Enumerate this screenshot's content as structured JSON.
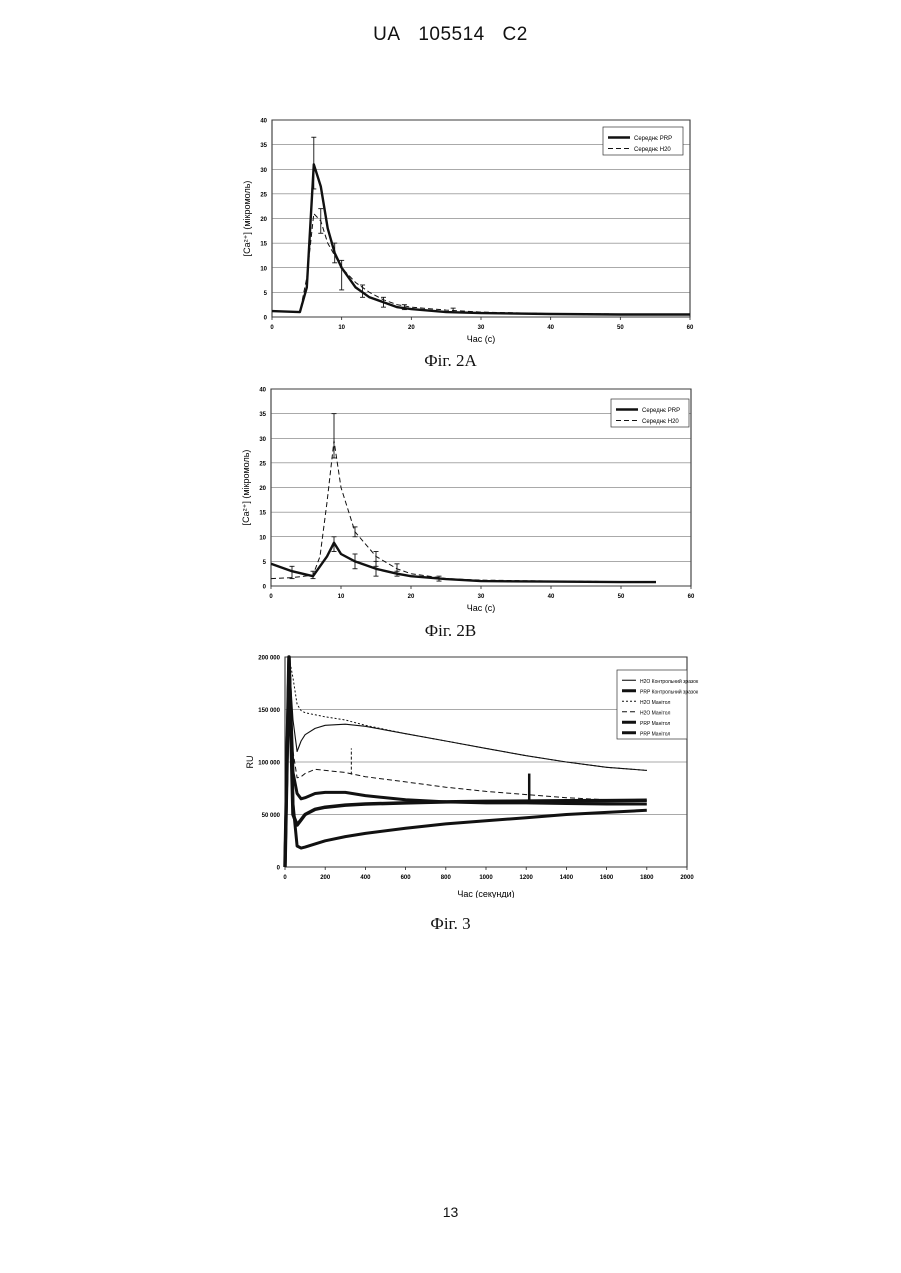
{
  "header": {
    "country": "UA",
    "number": "105514",
    "kind": "C2"
  },
  "page_number": "13",
  "captions": [
    "Фіг. 2А",
    "Фіг. 2В",
    "Фіг. 3"
  ],
  "chart_data": [
    {
      "type": "line",
      "id": "fig2a",
      "caption": "Фіг. 2А",
      "xlabel": "Час (с)",
      "ylabel": "[Ca²⁺] (мікромоль)",
      "xlim": [
        0,
        60
      ],
      "ylim": [
        0,
        40
      ],
      "x_ticks": [
        0,
        10,
        20,
        30,
        40,
        50,
        60
      ],
      "y_ticks": [
        0,
        5,
        10,
        15,
        20,
        25,
        30,
        35,
        40
      ],
      "grid": true,
      "legend_position": "top-right",
      "series": [
        {
          "name": "Середнє PRP",
          "style": "solid-thick",
          "x": [
            0,
            4,
            5,
            6,
            7,
            8,
            9,
            10,
            12,
            14,
            16,
            18,
            20,
            25,
            30,
            40,
            50,
            60
          ],
          "y": [
            1.2,
            1.0,
            6.0,
            31.0,
            26.5,
            18.0,
            13.0,
            10.0,
            6.0,
            4.0,
            3.0,
            2.0,
            1.6,
            1.0,
            0.8,
            0.6,
            0.5,
            0.5
          ],
          "errors": [
            {
              "x": 6,
              "low": 26,
              "high": 36.5
            },
            {
              "x": 10,
              "low": 5.5,
              "high": 11.5
            },
            {
              "x": 13,
              "low": 4,
              "high": 6.5
            },
            {
              "x": 19,
              "low": 1.5,
              "high": 2.5
            }
          ]
        },
        {
          "name": "Середнє H20",
          "style": "dashed",
          "x": [
            0,
            4,
            5,
            6,
            7,
            8,
            10,
            12,
            14,
            16,
            18,
            20,
            25,
            30,
            40,
            50,
            60
          ],
          "y": [
            1.2,
            1.0,
            8.0,
            21.0,
            19.5,
            15.0,
            10.0,
            7.0,
            5.0,
            3.5,
            2.5,
            2.0,
            1.4,
            1.0,
            0.7,
            0.6,
            0.5
          ],
          "errors": [
            {
              "x": 7,
              "low": 17,
              "high": 22
            },
            {
              "x": 9,
              "low": 11,
              "high": 15
            },
            {
              "x": 16,
              "low": 2,
              "high": 4
            },
            {
              "x": 26,
              "low": 1,
              "high": 1.8
            }
          ]
        }
      ]
    },
    {
      "type": "line",
      "id": "fig2b",
      "caption": "Фіг. 2В",
      "xlabel": "Час (с)",
      "ylabel": "[Ca²⁺] (мікромоль)",
      "xlim": [
        0,
        60
      ],
      "ylim": [
        0,
        40
      ],
      "x_ticks": [
        0,
        10,
        20,
        30,
        40,
        50,
        60
      ],
      "y_ticks": [
        0,
        5,
        10,
        15,
        20,
        25,
        30,
        35,
        40
      ],
      "grid": true,
      "legend_position": "top-right",
      "series": [
        {
          "name": "Середнє PRP",
          "style": "solid-thick",
          "x": [
            0,
            3,
            6,
            7,
            8,
            9,
            10,
            12,
            15,
            18,
            20,
            25,
            30,
            40,
            50,
            55
          ],
          "y": [
            4.5,
            3.0,
            2.0,
            4.0,
            6.0,
            8.8,
            6.5,
            5.0,
            3.5,
            2.5,
            2.0,
            1.4,
            1.0,
            0.9,
            0.8,
            0.8
          ],
          "errors": [
            {
              "x": 3,
              "low": 1.5,
              "high": 4
            },
            {
              "x": 6,
              "low": 1.5,
              "high": 3
            },
            {
              "x": 9,
              "low": 7,
              "high": 10
            },
            {
              "x": 12,
              "low": 3.5,
              "high": 6.5
            },
            {
              "x": 15,
              "low": 2,
              "high": 5
            },
            {
              "x": 18,
              "low": 2,
              "high": 3
            }
          ]
        },
        {
          "name": "Середнє H20",
          "style": "dashed",
          "x": [
            0,
            3,
            6,
            7,
            8,
            9,
            10,
            12,
            15,
            18,
            20,
            25,
            30,
            40,
            50,
            55
          ],
          "y": [
            1.5,
            1.7,
            2.2,
            6.0,
            17.0,
            29.5,
            20.0,
            11.0,
            6.0,
            3.5,
            2.5,
            1.5,
            1.2,
            1.0,
            0.9,
            0.9
          ],
          "errors": [
            {
              "x": 9,
              "low": 26,
              "high": 35
            },
            {
              "x": 12,
              "low": 10,
              "high": 12
            },
            {
              "x": 15,
              "low": 4,
              "high": 7
            },
            {
              "x": 18,
              "low": 2.5,
              "high": 4.5
            },
            {
              "x": 24,
              "low": 1,
              "high": 2
            }
          ]
        }
      ]
    },
    {
      "type": "line",
      "id": "fig3",
      "caption": "Фіг. 3",
      "xlabel": "Час (секунди)",
      "ylabel": "RU",
      "xlim": [
        0,
        2000
      ],
      "ylim": [
        0,
        200000
      ],
      "x_ticks": [
        0,
        200,
        400,
        600,
        800,
        1000,
        1200,
        1400,
        1600,
        1800,
        2000
      ],
      "y_ticks": [
        0,
        50000,
        100000,
        150000,
        200000
      ],
      "y_tick_labels": [
        "0",
        "50 000",
        "100 000",
        "150 000",
        "200 000"
      ],
      "grid": true,
      "legend_position": "top-right",
      "series": [
        {
          "name": "H2O Контрольний зразок",
          "style": "thin",
          "x": [
            0,
            20,
            40,
            60,
            80,
            100,
            150,
            200,
            300,
            400,
            600,
            800,
            1000,
            1200,
            1400,
            1600,
            1800
          ],
          "y": [
            0,
            200000,
            140000,
            110000,
            120000,
            126000,
            132000,
            135000,
            136000,
            134000,
            127000,
            120000,
            113000,
            106000,
            100000,
            95000,
            92000
          ]
        },
        {
          "name": "PRP Контрольний зразок",
          "style": "thick-square",
          "x": [
            0,
            20,
            40,
            60,
            80,
            100,
            150,
            200,
            300,
            400,
            600,
            800,
            1000,
            1200,
            1400,
            1600,
            1800
          ],
          "y": [
            0,
            200000,
            50000,
            40000,
            45000,
            50000,
            55000,
            57000,
            59000,
            60000,
            61000,
            62000,
            62500,
            62800,
            63000,
            63200,
            63500
          ]
        },
        {
          "name": "H2O Манітол",
          "style": "dashed-fine",
          "x": [
            0,
            20,
            40,
            60,
            80,
            100,
            150,
            200,
            300,
            400,
            600,
            800,
            1000,
            1200,
            1400,
            1600,
            1800
          ],
          "y": [
            0,
            200000,
            180000,
            155000,
            149000,
            147000,
            145000,
            143000,
            140000,
            135000,
            127000,
            120000,
            113000,
            106000,
            100000,
            95000,
            92000
          ]
        },
        {
          "name": "H2O Манітол",
          "style": "dashed",
          "x": [
            0,
            20,
            40,
            60,
            80,
            100,
            150,
            200,
            300,
            400,
            600,
            800,
            1000,
            1200,
            1400,
            1600,
            1800
          ],
          "y": [
            0,
            200000,
            110000,
            85000,
            86000,
            89000,
            93000,
            92000,
            90000,
            86000,
            81000,
            76000,
            72000,
            69000,
            66000,
            64000,
            63000
          ]
        },
        {
          "name": "PRP Манітол",
          "style": "thick",
          "x": [
            0,
            20,
            40,
            60,
            80,
            100,
            150,
            200,
            300,
            400,
            600,
            800,
            1000,
            1200,
            1400,
            1600,
            1800
          ],
          "y": [
            0,
            200000,
            90000,
            70000,
            65000,
            66000,
            70000,
            71000,
            71000,
            68000,
            64000,
            62000,
            61000,
            61000,
            60500,
            60000,
            60000
          ]
        },
        {
          "name": "PRP Манітол",
          "style": "thick",
          "x": [
            0,
            20,
            40,
            60,
            80,
            100,
            150,
            200,
            300,
            400,
            600,
            800,
            1000,
            1200,
            1400,
            1600,
            1800
          ],
          "y": [
            0,
            200000,
            60000,
            20000,
            18000,
            19000,
            22000,
            25000,
            29000,
            32000,
            37000,
            41000,
            44000,
            47000,
            50000,
            52000,
            54000
          ]
        }
      ],
      "error_bars": [
        {
          "x": 330,
          "low": 88000,
          "high": 113000,
          "style": "dashed"
        },
        {
          "x": 1215,
          "low": 64000,
          "high": 89000,
          "style": "solid"
        }
      ]
    }
  ]
}
